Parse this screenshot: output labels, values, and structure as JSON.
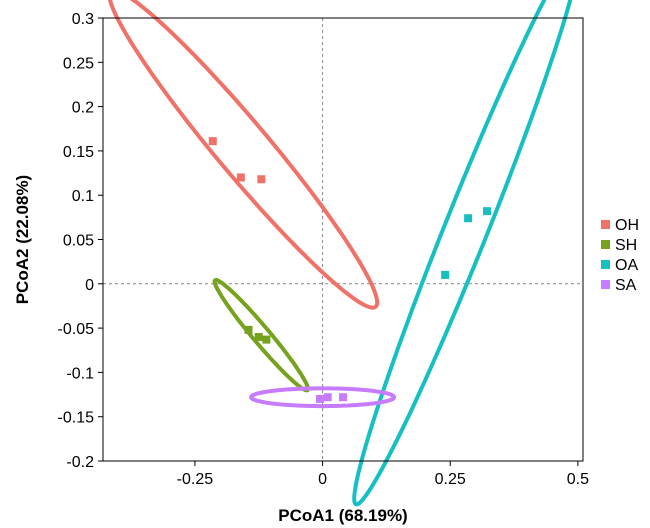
{
  "chart_data": {
    "type": "scatter",
    "xlabel": "PCoA1  (68.19%)",
    "ylabel": "PCoA2  (22.08%)",
    "xlim": [
      -0.43,
      0.51
    ],
    "ylim": [
      -0.2,
      0.3
    ],
    "xticks": [
      -0.25,
      0,
      0.25,
      0.5
    ],
    "xtick_labels": [
      "-0.25",
      "0",
      "0.25",
      "0.5"
    ],
    "yticks": [
      -0.2,
      -0.15,
      -0.1,
      -0.05,
      0,
      0.05,
      0.1,
      0.15,
      0.2,
      0.25,
      0.3
    ],
    "ytick_labels": [
      "-0.2",
      "-0.15",
      "-0.1",
      "-0.05",
      "0",
      "0.05",
      "0.1",
      "0.15",
      "0.2",
      "0.25",
      "0.3"
    ],
    "zero_lines": true,
    "legend_position": "right",
    "series": [
      {
        "name": "OH",
        "color": "#F07167",
        "points": [
          [
            -0.215,
            0.161
          ],
          [
            -0.16,
            0.12
          ],
          [
            -0.12,
            0.118
          ]
        ],
        "ellipse": {
          "center": [
            -0.155,
            0.152
          ],
          "rx": 0.315,
          "ry": 0.038,
          "angle_deg": -34
        }
      },
      {
        "name": "SH",
        "color": "#76A21E",
        "points": [
          [
            -0.145,
            -0.052
          ],
          [
            -0.125,
            -0.06
          ],
          [
            -0.11,
            -0.063
          ]
        ],
        "ellipse": {
          "center": [
            -0.12,
            -0.058
          ],
          "rx": 0.11,
          "ry": 0.012,
          "angle_deg": -34
        }
      },
      {
        "name": "OA",
        "color": "#16BFC2",
        "points": [
          [
            0.24,
            0.01
          ],
          [
            0.285,
            0.074
          ],
          [
            0.322,
            0.082
          ]
        ],
        "ellipse": {
          "center": [
            0.282,
            0.063
          ],
          "rx": 0.38,
          "ry": 0.037,
          "angle_deg": 55
        }
      },
      {
        "name": "SA",
        "color": "#C77CFF",
        "points": [
          [
            -0.005,
            -0.13
          ],
          [
            0.01,
            -0.128
          ],
          [
            0.04,
            -0.128
          ]
        ],
        "ellipse": {
          "center": [
            0.0,
            -0.128
          ],
          "rx": 0.14,
          "ry": 0.01,
          "angle_deg": 0
        }
      }
    ]
  }
}
